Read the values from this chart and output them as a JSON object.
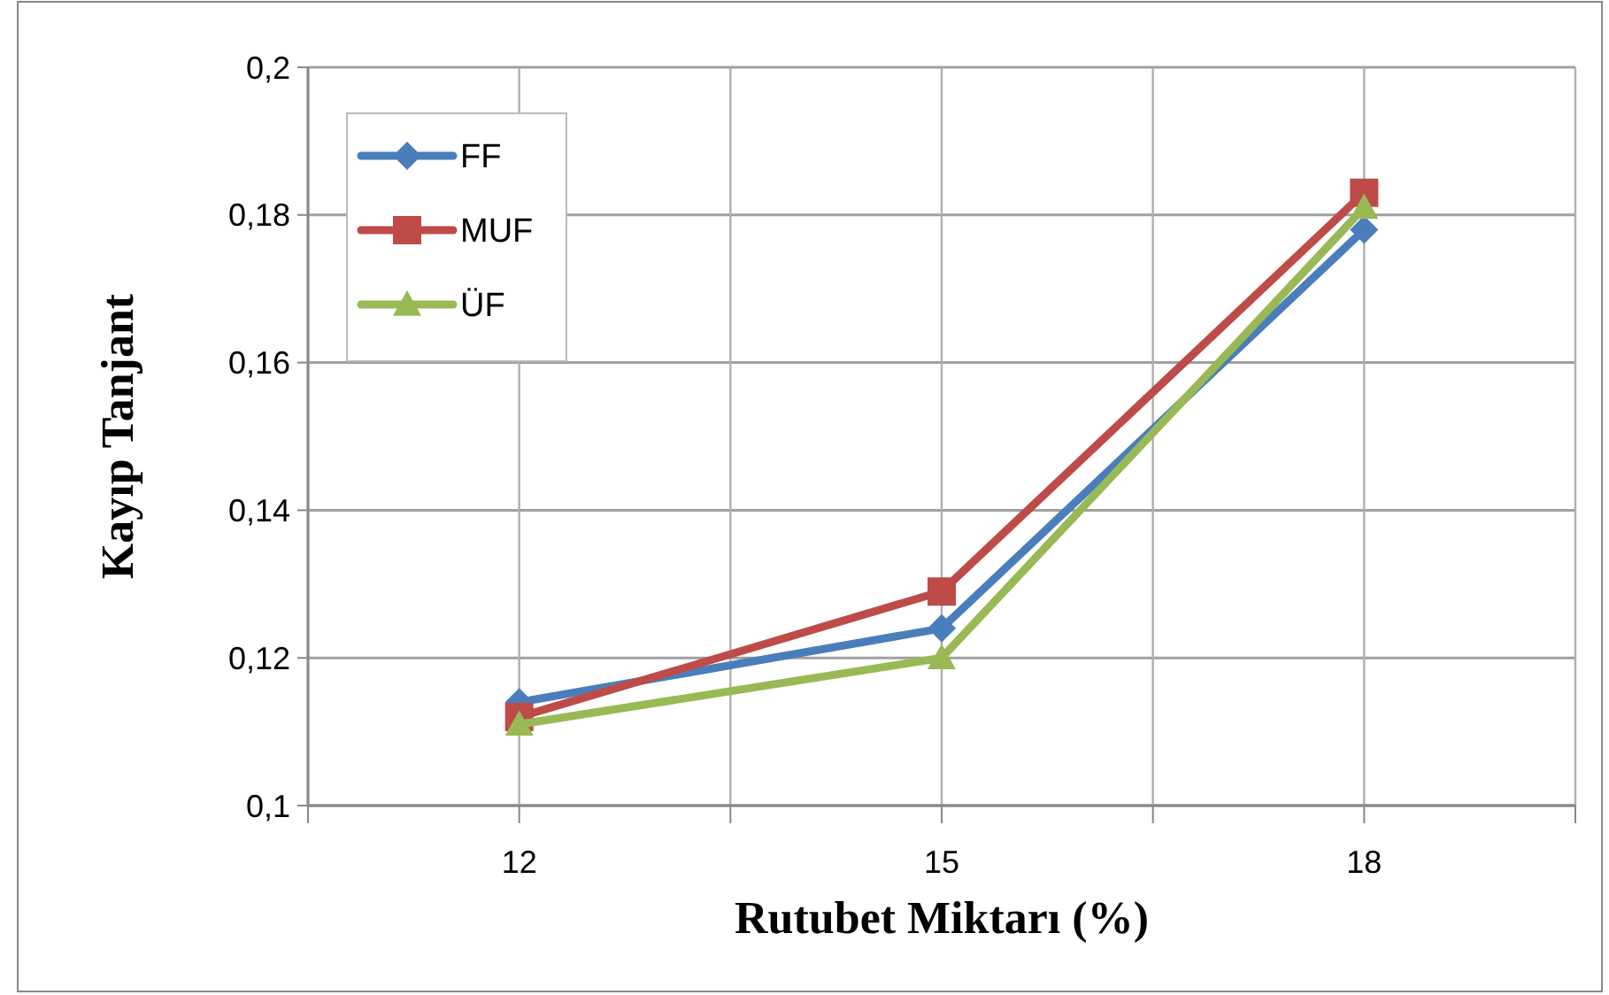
{
  "chart_data": {
    "type": "line",
    "xlabel": "Rutubet Miktarı (%)",
    "ylabel": "Kayıp Tanjant",
    "x": [
      12,
      15,
      18
    ],
    "series": [
      {
        "name": "FF",
        "color": "#4a7ebb",
        "values": [
          0.114,
          0.124,
          0.178
        ],
        "marker": "diamond"
      },
      {
        "name": "MUF",
        "color": "#be4b48",
        "values": [
          0.112,
          0.129,
          0.183
        ],
        "marker": "square"
      },
      {
        "name": "ÜF",
        "color": "#98b954",
        "values": [
          0.111,
          0.12,
          0.181
        ],
        "marker": "triangle"
      }
    ],
    "xlim": [
      10.5,
      19.5
    ],
    "xticks": [
      {
        "value": 10.5,
        "label": null
      },
      12,
      {
        "value": 13.5,
        "label": null
      },
      15,
      {
        "value": 16.5,
        "label": null
      },
      18,
      {
        "value": 19.5,
        "label": null
      }
    ],
    "ylim": [
      0.1,
      0.2
    ],
    "yticks": [
      {
        "value": 0.1,
        "label": "0,1"
      },
      {
        "value": 0.12,
        "label": "0,12"
      },
      {
        "value": 0.14,
        "label": "0,14"
      },
      {
        "value": 0.16,
        "label": "0,16"
      },
      {
        "value": 0.18,
        "label": "0,18"
      },
      {
        "value": 0.2,
        "label": "0,2"
      }
    ],
    "grid": true,
    "legend": "top left",
    "line_style": "solid"
  }
}
